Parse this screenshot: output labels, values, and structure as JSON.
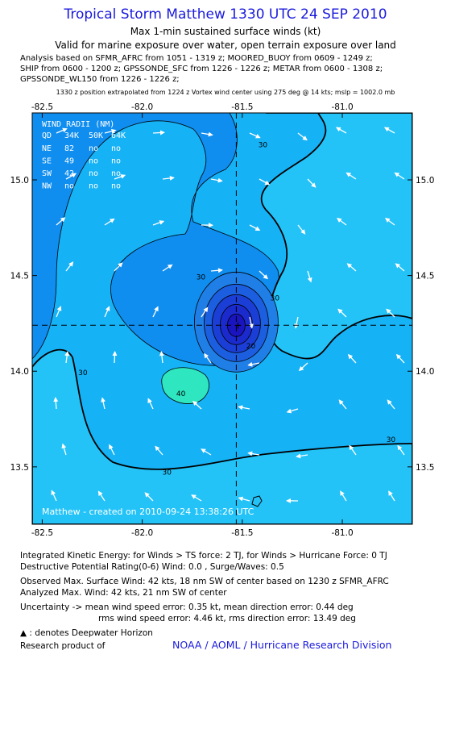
{
  "header": {
    "title": "Tropical Storm Matthew 1330 UTC 24 SEP 2010",
    "subtitle1": "Max 1-min sustained surface winds (kt)",
    "subtitle2": "Valid for marine exposure over water, open terrain exposure over land"
  },
  "analysis": {
    "line1": "Analysis based on SFMR_AFRC from 1051 - 1319 z; MOORED_BUOY from 0609 - 1249 z;",
    "line2": "SHIP from 0600 - 1200 z; GPSSONDE_SFC from 1226 - 1226 z; METAR from 0600 - 1308 z;",
    "line3": "GPSSONDE_WL150 from 1226 - 1226 z;",
    "position_note": "1330 z position extrapolated from 1224 z Vortex wind center using 275 deg @ 14 kts; mslp = 1002.0 mb"
  },
  "chart_data": {
    "type": "contour",
    "xlim": [
      -82.55,
      -80.65
    ],
    "ylim": [
      13.2,
      15.35
    ],
    "x_ticks": [
      "-82.5",
      "-82.0",
      "-81.5",
      "-81.0"
    ],
    "x_tick_values": [
      -82.5,
      -82.0,
      -81.5,
      -81.0
    ],
    "y_ticks": [
      "15.0",
      "14.5",
      "14.0",
      "13.5"
    ],
    "y_tick_values": [
      15.0,
      14.5,
      14.0,
      13.5
    ],
    "center": {
      "lon": -81.53,
      "lat": 14.24
    },
    "contour_labels": [
      {
        "text": "30",
        "lon": -81.42,
        "lat": 15.17
      },
      {
        "text": "30",
        "lon": -81.73,
        "lat": 14.48
      },
      {
        "text": "30",
        "lon": -81.36,
        "lat": 14.37
      },
      {
        "text": "20",
        "lon": -81.48,
        "lat": 14.12
      },
      {
        "text": "30",
        "lon": -82.32,
        "lat": 13.98
      },
      {
        "text": "40",
        "lon": -81.83,
        "lat": 13.87
      },
      {
        "text": "30",
        "lon": -80.78,
        "lat": 13.63
      },
      {
        "text": "30",
        "lon": -81.9,
        "lat": 13.46
      }
    ],
    "wind_radii": {
      "title": "WIND RADII (NM)",
      "header": [
        "QD",
        "34K",
        "50K",
        "64K"
      ],
      "rows": [
        [
          "NE",
          "82",
          "no",
          "no"
        ],
        [
          "SE",
          "49",
          "no",
          "no"
        ],
        [
          "SW",
          "42",
          "no",
          "no"
        ],
        [
          "NW",
          "no",
          "no",
          "no"
        ]
      ]
    },
    "footer_text": "Matthew - created on 2010-09-24 13:38:26 UTC",
    "colors": {
      "background": "#16b2f6",
      "band_20_30": "#0f8ef0",
      "band_30_40": "#23c3f8",
      "band_40": "#2ee6c0",
      "inner1": "#1f7fe6",
      "inner2": "#1c5ee0",
      "inner3": "#1b3fd6",
      "inner4": "#1a2acc",
      "core": "#1a14c0"
    }
  },
  "footer": {
    "ike": "Integrated Kinetic Energy:  for Winds > TS force: 2 TJ,  for Winds > Hurricane Force: 0 TJ",
    "dpr": "Destructive Potential Rating(0-6)   Wind: 0.0 , Surge/Waves: 0.5",
    "observed": "Observed Max. Surface Wind: 42 kts, 18 nm SW of center based on 1230 z SFMR_AFRC",
    "analyzed": "Analyzed Max. Wind: 42 kts, 21 nm SW of center",
    "uncertainty1": "Uncertainty -> mean wind speed error: 0.35 kt,   mean direction error: 0.44 deg",
    "uncertainty2": "rms wind speed error: 4.46 kt,   rms direction error: 13.49 deg",
    "deepwater": ": denotes Deepwater Horizon",
    "research": "Research product of",
    "noaa": "NOAA / AOML / Hurricane Research Division"
  }
}
